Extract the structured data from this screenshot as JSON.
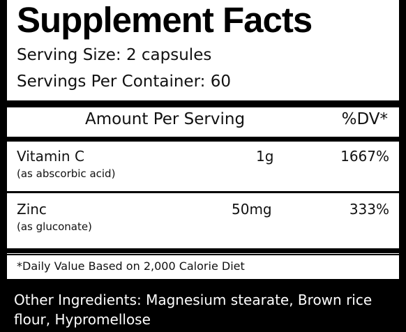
{
  "label": {
    "title": "Supplement Facts",
    "serving_size": "Serving Size: 2 capsules",
    "servings_per_container": "Servings Per Container: 60",
    "header_amount": "Amount Per Serving",
    "header_dv": "%DV*",
    "nutrients": [
      {
        "name": "Vitamin C",
        "source": "(as abscorbic acid)",
        "amount": "1g",
        "dv": "1667%"
      },
      {
        "name": "Zinc",
        "source": "(as gluconate)",
        "amount": "50mg",
        "dv": "333%"
      }
    ],
    "footnote": "*Daily Value Based on 2,000 Calorie Diet",
    "other_ingredients": "Other Ingredients: Magnesium stearate, Brown rice flour, Hypromellose"
  }
}
